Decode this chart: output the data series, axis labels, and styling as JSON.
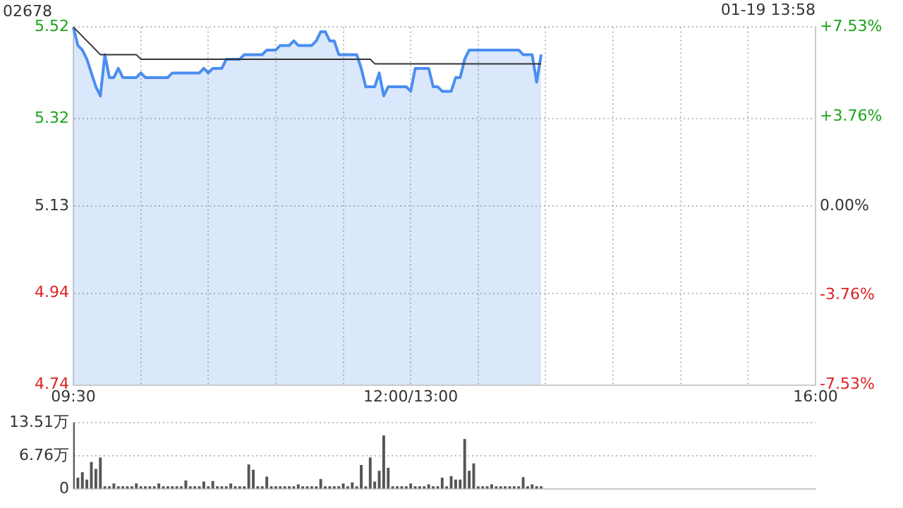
{
  "chart_data": [
    {
      "type": "area",
      "title": "02678",
      "annotations": [
        "01-19 13:58"
      ],
      "categories": [
        "09:30",
        null,
        null,
        null,
        null,
        null,
        null,
        null,
        null,
        null,
        null,
        null,
        null,
        null,
        null,
        null,
        null,
        null,
        null,
        null,
        null,
        null,
        null,
        null,
        null,
        null,
        null,
        null,
        null,
        null,
        null,
        null,
        null,
        null,
        null,
        null,
        null,
        null,
        null,
        null,
        null,
        null,
        null,
        null,
        null,
        null,
        null,
        null,
        null,
        null,
        null,
        null,
        null,
        null,
        null,
        null,
        null,
        null,
        null,
        null,
        null,
        null,
        null,
        null,
        null,
        null,
        null,
        null,
        null,
        null,
        null,
        null,
        null,
        null,
        null,
        "12:00/13:00",
        null,
        null,
        null,
        null,
        null,
        null,
        null,
        null,
        null,
        null,
        null,
        null,
        null,
        null,
        null,
        null,
        null,
        null,
        null,
        null,
        null,
        null,
        null,
        null,
        null,
        null,
        null,
        null,
        null,
        null,
        null,
        null,
        null,
        null,
        null,
        null,
        null,
        null,
        null,
        null,
        null,
        null,
        null,
        null,
        null,
        null,
        null,
        null,
        null,
        null,
        null,
        null,
        null,
        null,
        null,
        null,
        null,
        null,
        null,
        null,
        null,
        null,
        null,
        null,
        null,
        null,
        null,
        null,
        null,
        null,
        null,
        null,
        null,
        null,
        null,
        null,
        null,
        null,
        null,
        null,
        null,
        null,
        null,
        null,
        null,
        null,
        null,
        null,
        null,
        "16:00"
      ],
      "ylim": [
        4.74,
        5.52
      ],
      "yticks": [
        4.74,
        4.94,
        5.13,
        5.32,
        5.52
      ],
      "y2lim": [
        -7.53,
        7.53
      ],
      "y2ticks": [
        {
          "value": -7.53,
          "label": "-7.53%"
        },
        {
          "value": -3.76,
          "label": "-3.76%"
        },
        {
          "value": 0,
          "label": "0.00%"
        },
        {
          "value": 3.76,
          "label": "+3.76%"
        },
        {
          "value": 7.53,
          "label": "+7.53%"
        }
      ],
      "grid": true,
      "legend": false,
      "marker": "none",
      "series": [
        {
          "type": "area",
          "color": "#4a8ef0",
          "values": [
            5.52,
            5.48,
            5.47,
            5.45,
            5.42,
            5.39,
            5.37,
            5.46,
            5.41,
            5.41,
            5.43,
            5.41,
            5.41,
            5.41,
            5.41,
            5.42,
            5.41,
            5.41,
            5.41,
            5.41,
            5.41,
            5.41,
            5.42,
            5.42,
            5.42,
            5.42,
            5.42,
            5.42,
            5.42,
            5.43,
            5.42,
            5.43,
            5.43,
            5.43,
            5.45,
            5.45,
            5.45,
            5.45,
            5.46,
            5.46,
            5.46,
            5.46,
            5.46,
            5.47,
            5.47,
            5.47,
            5.48,
            5.48,
            5.48,
            5.49,
            5.48,
            5.48,
            5.48,
            5.48,
            5.49,
            5.51,
            5.51,
            5.49,
            5.49,
            5.46,
            5.46,
            5.46,
            5.46,
            5.46,
            5.43,
            5.39,
            5.39,
            5.39,
            5.42,
            5.37,
            5.39,
            5.39,
            5.39,
            5.39,
            5.39,
            5.38,
            5.43,
            5.43,
            5.43,
            5.43,
            5.39,
            5.39,
            5.38,
            5.38,
            5.38,
            5.41,
            5.41,
            5.45,
            5.47,
            5.47,
            5.47,
            5.47,
            5.47,
            5.47,
            5.47,
            5.47,
            5.47,
            5.47,
            5.47,
            5.47,
            5.46,
            5.46,
            5.46,
            5.4,
            5.46,
            null,
            null,
            null,
            null,
            null,
            null,
            null,
            null,
            null,
            null,
            null,
            null,
            null,
            null,
            null,
            null,
            null,
            null,
            null,
            null,
            null,
            null,
            null,
            null,
            null,
            null,
            null,
            null,
            null,
            null,
            null,
            null,
            null,
            null,
            null,
            null,
            null,
            null,
            null,
            null,
            null,
            null,
            null,
            null,
            null,
            null,
            null,
            null,
            null,
            null,
            null,
            null,
            null,
            null,
            null,
            null,
            null,
            null,
            null,
            null,
            null
          ]
        },
        {
          "type": "line",
          "color": "#333333",
          "values": [
            5.52,
            5.51,
            5.5,
            5.49,
            5.48,
            5.47,
            5.46,
            5.46,
            5.46,
            5.46,
            5.46,
            5.46,
            5.46,
            5.46,
            5.46,
            5.45,
            5.45,
            5.45,
            5.45,
            5.45,
            5.45,
            5.45,
            5.45,
            5.45,
            5.45,
            5.45,
            5.45,
            5.45,
            5.45,
            5.45,
            5.45,
            5.45,
            5.45,
            5.45,
            5.45,
            5.45,
            5.45,
            5.45,
            5.45,
            5.45,
            5.45,
            5.45,
            5.45,
            5.45,
            5.45,
            5.45,
            5.45,
            5.45,
            5.45,
            5.45,
            5.45,
            5.45,
            5.45,
            5.45,
            5.45,
            5.45,
            5.45,
            5.45,
            5.45,
            5.45,
            5.45,
            5.45,
            5.45,
            5.45,
            5.45,
            5.45,
            5.45,
            5.44,
            5.44,
            5.44,
            5.44,
            5.44,
            5.44,
            5.44,
            5.44,
            5.44,
            5.44,
            5.44,
            5.44,
            5.44,
            5.44,
            5.44,
            5.44,
            5.44,
            5.44,
            5.44,
            5.44,
            5.44,
            5.44,
            5.44,
            5.44,
            5.44,
            5.44,
            5.44,
            5.44,
            5.44,
            5.44,
            5.44,
            5.44,
            5.44,
            5.44,
            5.44,
            5.44,
            5.44,
            5.44,
            null,
            null,
            null,
            null,
            null,
            null,
            null,
            null,
            null,
            null,
            null,
            null,
            null,
            null,
            null,
            null,
            null,
            null,
            null,
            null,
            null,
            null,
            null,
            null,
            null,
            null,
            null,
            null,
            null,
            null,
            null,
            null,
            null,
            null,
            null,
            null,
            null,
            null,
            null,
            null,
            null,
            null,
            null,
            null,
            null,
            null,
            null,
            null,
            null,
            null,
            null,
            null,
            null,
            null,
            null,
            null,
            null,
            null,
            null,
            null,
            null
          ]
        }
      ]
    },
    {
      "type": "bar",
      "categories": [
        null,
        null,
        null,
        null,
        null,
        null,
        null,
        null,
        null,
        null,
        null,
        null,
        null,
        null,
        null,
        null,
        null,
        null,
        null,
        null,
        null,
        null,
        null,
        null,
        null,
        null,
        null,
        null,
        null,
        null,
        null,
        null,
        null,
        null,
        null,
        null,
        null,
        null,
        null,
        null,
        null,
        null,
        null,
        null,
        null,
        null,
        null,
        null,
        null,
        null,
        null,
        null,
        null,
        null,
        null,
        null,
        null,
        null,
        null,
        null,
        null,
        null,
        null,
        null,
        null,
        null,
        null,
        null,
        null,
        null,
        null,
        null,
        null,
        null,
        null,
        null,
        null,
        null,
        null,
        null,
        null,
        null,
        null,
        null,
        null,
        null,
        null,
        null,
        null,
        null,
        null,
        null,
        null,
        null,
        null,
        null,
        null,
        null,
        null,
        null,
        null,
        null,
        null,
        null,
        null,
        null,
        null,
        null,
        null,
        null,
        null,
        null,
        null,
        null,
        null,
        null,
        null,
        null,
        null,
        null,
        null,
        null,
        null,
        null,
        null,
        null,
        null,
        null,
        null,
        null,
        null,
        null,
        null,
        null,
        null,
        null,
        null,
        null,
        null,
        null,
        null,
        null,
        null,
        null,
        null,
        null,
        null,
        null,
        null,
        null,
        null,
        null,
        null,
        null,
        null,
        null,
        null,
        null,
        null,
        null,
        null,
        null,
        null,
        null,
        null,
        null
      ],
      "ylim": [
        0,
        13.51
      ],
      "yticks": [
        0,
        {
          "value": 6.76,
          "label": "6.76万"
        },
        {
          "value": 13.51,
          "label": "13.51万"
        }
      ],
      "tick_labels": "y",
      "grid": "y",
      "legend": false,
      "color": "#555555",
      "values": [
        13.5,
        2.2,
        3.3,
        1.8,
        5.4,
        4.0,
        6.3,
        0.4,
        0.4,
        1.0,
        0.4,
        0.4,
        0.4,
        0.4,
        1.0,
        0.4,
        0.4,
        0.4,
        0.4,
        1.0,
        0.4,
        0.4,
        0.4,
        0.4,
        0.4,
        1.6,
        0.4,
        0.4,
        0.4,
        1.4,
        0.4,
        1.5,
        0.4,
        0.4,
        0.4,
        1.0,
        0.4,
        0.4,
        0.4,
        4.9,
        3.8,
        0.4,
        0.4,
        2.4,
        0.4,
        0.4,
        0.4,
        0.4,
        0.4,
        0.4,
        0.8,
        0.4,
        0.4,
        0.4,
        0.4,
        1.9,
        0.4,
        0.4,
        0.4,
        0.4,
        1.0,
        0.4,
        1.2,
        0.4,
        4.8,
        0.4,
        6.3,
        1.4,
        3.6,
        10.8,
        4.2,
        0.4,
        0.4,
        0.4,
        0.4,
        1.0,
        0.4,
        0.4,
        0.4,
        0.8,
        0.4,
        0.4,
        2.2,
        0.4,
        2.5,
        1.8,
        1.8,
        10.1,
        3.6,
        5.1,
        0.4,
        0.4,
        0.4,
        0.8,
        0.4,
        0.4,
        0.4,
        0.4,
        0.4,
        0.4,
        2.3,
        0.4,
        0.8,
        0.4,
        0.4,
        null,
        null,
        null,
        null,
        null,
        null,
        null,
        null,
        null,
        null,
        null,
        null,
        null,
        null,
        null,
        null,
        null,
        null,
        null,
        null,
        null,
        null,
        null,
        null,
        null,
        null,
        null,
        null,
        null,
        null,
        null,
        null,
        null,
        null,
        null,
        null,
        null,
        null,
        null,
        null,
        null,
        null,
        null,
        null,
        null,
        null,
        null,
        null,
        null,
        null,
        null,
        null,
        null,
        null,
        null,
        null,
        null,
        null,
        null,
        null,
        null
      ]
    }
  ]
}
